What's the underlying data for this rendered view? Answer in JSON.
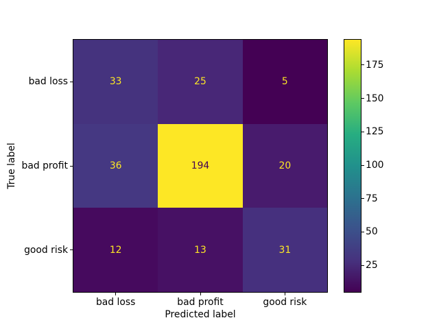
{
  "figure": {
    "background": "#ffffff",
    "frame_color": "#000000",
    "text_color": "#000000"
  },
  "chart_data": {
    "type": "heatmap",
    "subtype": "confusion-matrix",
    "title": "",
    "xlabel": "Predicted label",
    "ylabel": "True label",
    "x_categories": [
      "bad loss",
      "bad profit",
      "good risk"
    ],
    "y_categories": [
      "bad loss",
      "bad profit",
      "good risk"
    ],
    "matrix": [
      [
        33,
        25,
        5
      ],
      [
        36,
        194,
        20
      ],
      [
        12,
        13,
        31
      ]
    ],
    "vmin": 5,
    "vmax": 194,
    "colormap": "viridis",
    "grid": false,
    "legend_position": "colorbar-right",
    "colorbar_ticks": [
      25,
      50,
      75,
      100,
      125,
      150,
      175
    ],
    "cell_colors": [
      [
        "#45337e",
        "#482777",
        "#440154"
      ],
      [
        "#453882",
        "#fde725",
        "#481b6d"
      ],
      [
        "#460a5e",
        "#471164",
        "#46307e"
      ]
    ],
    "cell_text_colors": [
      [
        "#fde725",
        "#fde725",
        "#fde725"
      ],
      [
        "#fde725",
        "#440154",
        "#fde725"
      ],
      [
        "#fde725",
        "#fde725",
        "#fde725"
      ]
    ],
    "colorbar_gradient_bottom_to_top": [
      "#440154",
      "#46327e",
      "#3b528b",
      "#2c728e",
      "#21918c",
      "#27ad81",
      "#5ec962",
      "#aadc32",
      "#fde725"
    ]
  }
}
